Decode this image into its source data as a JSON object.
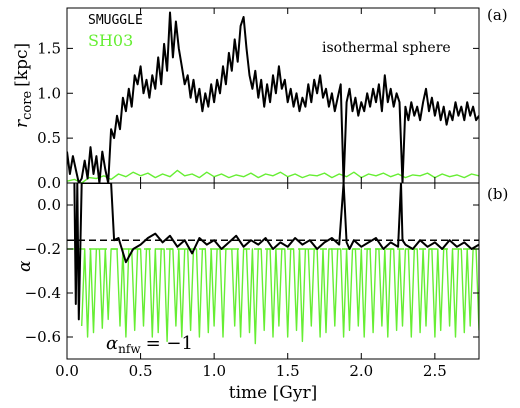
{
  "chart_data": [
    {
      "panel": "(a)",
      "type": "line",
      "ylabel_main": "r",
      "ylabel_sub": "core",
      "ylabel_unit": "[kpc]",
      "annotation": "isothermal sphere",
      "xlim": [
        0,
        2.8
      ],
      "ylim": [
        0,
        1.95
      ],
      "yticks": [
        0.0,
        0.5,
        1.0,
        1.5
      ],
      "ytick_labels": [
        "0.0",
        "0.5",
        "1.0",
        "1.5"
      ],
      "legend_position": "top-left",
      "series": [
        {
          "name": "SMUGGLE",
          "color": "#000000",
          "x": [
            0,
            0.02,
            0.04,
            0.06,
            0.08,
            0.1,
            0.12,
            0.14,
            0.16,
            0.18,
            0.2,
            0.22,
            0.24,
            0.26,
            0.28,
            0.3,
            0.32,
            0.34,
            0.36,
            0.38,
            0.4,
            0.42,
            0.44,
            0.46,
            0.48,
            0.5,
            0.52,
            0.54,
            0.56,
            0.58,
            0.6,
            0.62,
            0.64,
            0.66,
            0.68,
            0.7,
            0.72,
            0.74,
            0.76,
            0.78,
            0.8,
            0.82,
            0.84,
            0.86,
            0.88,
            0.9,
            0.92,
            0.94,
            0.96,
            0.98,
            1.0,
            1.02,
            1.04,
            1.06,
            1.08,
            1.1,
            1.12,
            1.14,
            1.16,
            1.18,
            1.2,
            1.22,
            1.24,
            1.26,
            1.28,
            1.3,
            1.32,
            1.34,
            1.36,
            1.38,
            1.4,
            1.42,
            1.44,
            1.46,
            1.48,
            1.5,
            1.52,
            1.54,
            1.56,
            1.58,
            1.6,
            1.62,
            1.64,
            1.66,
            1.68,
            1.7,
            1.72,
            1.74,
            1.76,
            1.78,
            1.8,
            1.82,
            1.84,
            1.86,
            1.88,
            1.9,
            1.92,
            1.94,
            1.96,
            1.98,
            2.0,
            2.02,
            2.04,
            2.06,
            2.08,
            2.1,
            2.12,
            2.14,
            2.16,
            2.18,
            2.2,
            2.22,
            2.24,
            2.26,
            2.28,
            2.3,
            2.32,
            2.34,
            2.36,
            2.38,
            2.4,
            2.42,
            2.44,
            2.46,
            2.48,
            2.5,
            2.52,
            2.54,
            2.56,
            2.58,
            2.6,
            2.62,
            2.64,
            2.66,
            2.68,
            2.7,
            2.72,
            2.74,
            2.76,
            2.78,
            2.8
          ],
          "y": [
            0.35,
            0.1,
            0.3,
            0.15,
            0.0,
            0.05,
            0.25,
            0.05,
            0.4,
            0.1,
            0.3,
            0.0,
            0.35,
            0.15,
            0.0,
            0.6,
            0.5,
            0.75,
            0.6,
            0.95,
            0.8,
            1.05,
            0.85,
            1.2,
            1.1,
            1.3,
            1.0,
            1.15,
            0.95,
            1.2,
            1.05,
            1.4,
            1.1,
            1.55,
            1.25,
            1.9,
            1.4,
            1.8,
            1.5,
            1.3,
            1.1,
            1.2,
            0.95,
            1.15,
            0.9,
            1.05,
            0.8,
            1.0,
            0.85,
            1.1,
            0.9,
            1.15,
            1.0,
            1.3,
            1.1,
            1.45,
            1.25,
            1.6,
            1.35,
            1.75,
            1.85,
            1.5,
            1.2,
            1.05,
            1.25,
            0.95,
            1.15,
            0.85,
            1.1,
            0.9,
            1.2,
            1.0,
            1.3,
            1.05,
            1.15,
            0.9,
            1.05,
            0.85,
            1.0,
            0.8,
            0.95,
            0.85,
            1.1,
            0.9,
            1.15,
            1.0,
            1.2,
            0.95,
            1.05,
            0.85,
            1.0,
            0.8,
            0.95,
            1.1,
            0.0,
            0.9,
            1.05,
            0.8,
            0.95,
            0.75,
            0.9,
            0.8,
            1.0,
            0.85,
            1.05,
            0.9,
            1.1,
            0.8,
            1.2,
            0.9,
            1.05,
            0.85,
            1.0,
            0.9,
            0.0,
            0.85,
            0.7,
            0.9,
            0.75,
            0.85,
            0.7,
            0.9,
            1.05,
            0.8,
            0.95,
            0.75,
            0.9,
            0.7,
            0.85,
            0.65,
            0.8,
            0.7,
            0.9,
            0.75,
            0.85,
            0.7,
            0.9,
            0.75,
            0.85,
            0.7,
            0.75
          ]
        },
        {
          "name": "SH03",
          "color": "#66ee33",
          "x": [
            0,
            0.05,
            0.1,
            0.15,
            0.2,
            0.25,
            0.3,
            0.35,
            0.4,
            0.45,
            0.5,
            0.55,
            0.6,
            0.65,
            0.7,
            0.75,
            0.8,
            0.85,
            0.9,
            0.95,
            1.0,
            1.05,
            1.1,
            1.15,
            1.2,
            1.25,
            1.3,
            1.35,
            1.4,
            1.45,
            1.5,
            1.55,
            1.6,
            1.65,
            1.7,
            1.75,
            1.8,
            1.85,
            1.9,
            1.95,
            2.0,
            2.05,
            2.1,
            2.15,
            2.2,
            2.25,
            2.3,
            2.35,
            2.4,
            2.45,
            2.5,
            2.55,
            2.6,
            2.65,
            2.7,
            2.75,
            2.8
          ],
          "y": [
            0.02,
            0.04,
            0.0,
            0.06,
            0.05,
            0.08,
            0.04,
            0.1,
            0.07,
            0.12,
            0.08,
            0.11,
            0.06,
            0.1,
            0.07,
            0.14,
            0.08,
            0.1,
            0.06,
            0.12,
            0.07,
            0.1,
            0.06,
            0.09,
            0.07,
            0.11,
            0.06,
            0.1,
            0.08,
            0.12,
            0.07,
            0.1,
            0.06,
            0.09,
            0.08,
            0.11,
            0.06,
            0.1,
            0.07,
            0.12,
            0.06,
            0.1,
            0.08,
            0.11,
            0.07,
            0.1,
            0.06,
            0.09,
            0.08,
            0.11,
            0.06,
            0.1,
            0.07,
            0.09,
            0.06,
            0.1,
            0.08
          ]
        }
      ]
    },
    {
      "panel": "(b)",
      "type": "line",
      "ylabel": "α",
      "annotation": "α",
      "annotation_sub": "nfw",
      "annotation_rest": "= −1",
      "xlabel": "time [Gyr]",
      "xlim": [
        0,
        2.8
      ],
      "ylim": [
        -0.7,
        0.1
      ],
      "xticks": [
        0.0,
        0.5,
        1.0,
        1.5,
        2.0,
        2.5
      ],
      "xtick_labels": [
        "0.0",
        "0.5",
        "1.0",
        "1.5",
        "2.0",
        "2.5"
      ],
      "yticks": [
        0.0,
        -0.2,
        -0.4,
        -0.6
      ],
      "ytick_labels": [
        "0.0",
        "−0.2",
        "−0.4",
        "−0.6"
      ],
      "reference_lines": [
        {
          "y": -0.16,
          "color": "#000000",
          "style": "dashed"
        },
        {
          "y": -0.2,
          "color": "#66ee33",
          "style": "dashed"
        }
      ],
      "series": [
        {
          "name": "SMUGGLE",
          "color": "#000000",
          "x": [
            0.05,
            0.06,
            0.07,
            0.08,
            0.1,
            0.12,
            0.14,
            0.16,
            0.18,
            0.2,
            0.22,
            0.24,
            0.26,
            0.28,
            0.3,
            0.32,
            0.35,
            0.4,
            0.45,
            0.5,
            0.55,
            0.6,
            0.65,
            0.7,
            0.75,
            0.8,
            0.85,
            0.9,
            0.95,
            1.0,
            1.05,
            1.1,
            1.15,
            1.2,
            1.25,
            1.3,
            1.35,
            1.4,
            1.45,
            1.5,
            1.55,
            1.6,
            1.65,
            1.7,
            1.75,
            1.8,
            1.85,
            1.88,
            1.9,
            1.92,
            1.95,
            2.0,
            2.05,
            2.1,
            2.15,
            2.2,
            2.25,
            2.27,
            2.28,
            2.3,
            2.35,
            2.4,
            2.45,
            2.5,
            2.55,
            2.6,
            2.65,
            2.7,
            2.75,
            2.8
          ],
          "y": [
            0.1,
            -0.45,
            0.1,
            -0.52,
            0.1,
            0.1,
            0.1,
            0.1,
            0.1,
            0.1,
            0.1,
            0.1,
            0.1,
            0.1,
            0.1,
            -0.16,
            -0.15,
            -0.26,
            -0.2,
            -0.18,
            -0.15,
            -0.13,
            -0.17,
            -0.14,
            -0.19,
            -0.16,
            -0.22,
            -0.15,
            -0.18,
            -0.16,
            -0.2,
            -0.17,
            -0.14,
            -0.19,
            -0.16,
            -0.18,
            -0.15,
            -0.2,
            -0.17,
            -0.19,
            -0.15,
            -0.18,
            -0.16,
            -0.2,
            -0.17,
            -0.15,
            -0.18,
            0.1,
            -0.17,
            -0.2,
            -0.16,
            -0.19,
            -0.17,
            -0.15,
            -0.2,
            -0.17,
            -0.19,
            0.1,
            -0.16,
            -0.18,
            -0.2,
            -0.16,
            -0.19,
            -0.17,
            -0.2,
            -0.16,
            -0.19,
            -0.17,
            -0.2,
            -0.18
          ]
        },
        {
          "name": "SH03",
          "color": "#66ee33",
          "x": [
            0.1,
            0.12,
            0.14,
            0.16,
            0.18,
            0.2,
            0.22,
            0.24,
            0.26,
            0.28,
            0.3,
            0.32,
            0.34,
            0.36,
            0.38,
            0.4,
            0.42,
            0.44,
            0.46,
            0.48,
            0.5,
            0.52,
            0.54,
            0.56,
            0.58,
            0.6,
            0.62,
            0.64,
            0.66,
            0.68,
            0.7,
            0.72,
            0.74,
            0.76,
            0.78,
            0.8,
            0.82,
            0.84,
            0.86,
            0.88,
            0.9,
            0.92,
            0.94,
            0.96,
            0.98,
            1.0,
            1.02,
            1.04,
            1.06,
            1.08,
            1.1,
            1.12,
            1.14,
            1.16,
            1.18,
            1.2,
            1.22,
            1.24,
            1.26,
            1.28,
            1.3,
            1.32,
            1.34,
            1.36,
            1.38,
            1.4,
            1.42,
            1.44,
            1.46,
            1.48,
            1.5,
            1.52,
            1.54,
            1.56,
            1.58,
            1.6,
            1.62,
            1.64,
            1.66,
            1.68,
            1.7,
            1.72,
            1.74,
            1.76,
            1.78,
            1.8,
            1.82,
            1.84,
            1.86,
            1.88,
            1.9,
            1.92,
            1.94,
            1.96,
            1.98,
            2.0,
            2.02,
            2.04,
            2.06,
            2.08,
            2.1,
            2.12,
            2.14,
            2.16,
            2.18,
            2.2,
            2.22,
            2.24,
            2.26,
            2.28,
            2.3,
            2.32,
            2.34,
            2.36,
            2.38,
            2.4,
            2.42,
            2.44,
            2.46,
            2.48,
            2.5,
            2.52,
            2.54,
            2.56,
            2.58,
            2.6,
            2.62,
            2.64,
            2.66,
            2.68,
            2.7,
            2.72,
            2.74,
            2.76,
            2.78,
            2.8
          ],
          "y": [
            -0.55,
            -0.2,
            -0.6,
            -0.2,
            -0.58,
            -0.2,
            -0.2,
            -0.56,
            -0.2,
            -0.52,
            -0.2,
            -0.2,
            -0.2,
            -0.55,
            -0.2,
            -0.6,
            -0.2,
            -0.2,
            -0.57,
            -0.2,
            -0.2,
            -0.55,
            -0.2,
            -0.2,
            -0.6,
            -0.2,
            -0.58,
            -0.2,
            -0.2,
            -0.62,
            -0.2,
            -0.2,
            -0.55,
            -0.2,
            -0.6,
            -0.2,
            -0.2,
            -0.57,
            -0.2,
            -0.2,
            -0.6,
            -0.2,
            -0.2,
            -0.58,
            -0.2,
            -0.55,
            -0.2,
            -0.2,
            -0.6,
            -0.2,
            -0.2,
            -0.2,
            -0.55,
            -0.2,
            -0.6,
            -0.2,
            -0.2,
            -0.58,
            -0.2,
            -0.63,
            -0.2,
            -0.2,
            -0.57,
            -0.2,
            -0.2,
            -0.6,
            -0.2,
            -0.55,
            -0.2,
            -0.2,
            -0.6,
            -0.2,
            -0.2,
            -0.57,
            -0.2,
            -0.62,
            -0.2,
            -0.2,
            -0.55,
            -0.2,
            -0.2,
            -0.6,
            -0.2,
            -0.58,
            -0.2,
            -0.2,
            -0.55,
            -0.2,
            -0.2,
            -0.6,
            -0.2,
            -0.57,
            -0.2,
            -0.2,
            -0.55,
            -0.2,
            -0.6,
            -0.2,
            -0.2,
            -0.58,
            -0.2,
            -0.2,
            -0.55,
            -0.2,
            -0.6,
            -0.2,
            -0.2,
            -0.57,
            -0.2,
            -0.55,
            -0.2,
            -0.2,
            -0.6,
            -0.2,
            -0.2,
            -0.58,
            -0.2,
            -0.55,
            -0.2,
            -0.2,
            -0.6,
            -0.2,
            -0.57,
            -0.2,
            -0.2,
            -0.55,
            -0.2,
            -0.6,
            -0.2,
            -0.2,
            -0.58,
            -0.2,
            -0.55,
            -0.2,
            -0.2,
            -0.57
          ]
        }
      ]
    }
  ]
}
